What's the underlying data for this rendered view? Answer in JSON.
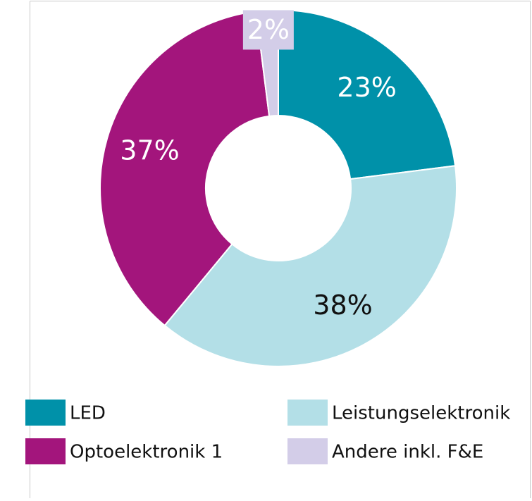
{
  "chart_data": {
    "type": "donut",
    "categories": [
      "LED",
      "Leistungselektronik",
      "Optoelektronik 1",
      "Andere inkl. F&E"
    ],
    "values": [
      23,
      38,
      37,
      2
    ],
    "value_labels": [
      "23%",
      "38%",
      "37%",
      "2%"
    ],
    "colors": [
      "#0091a9",
      "#b3dfe7",
      "#a3157c",
      "#d3cde8"
    ],
    "legend": "bottom"
  }
}
